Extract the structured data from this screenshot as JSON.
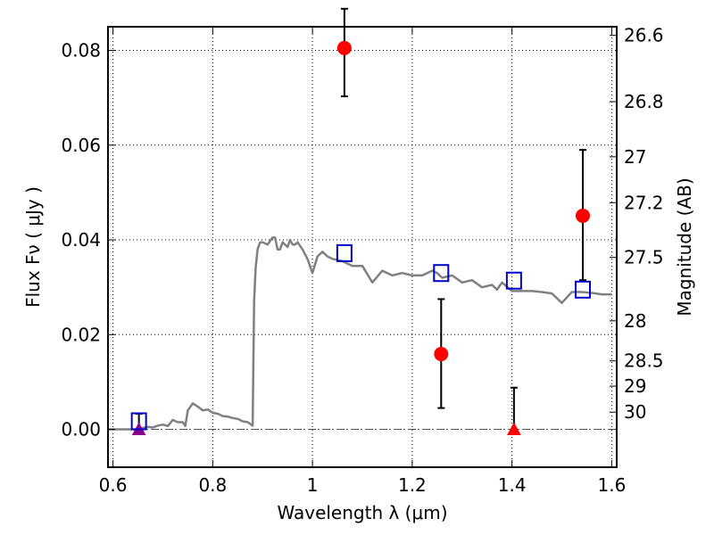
{
  "chart_data": {
    "type": "scatter",
    "xlabel": "Wavelength  λ (μm)",
    "ylabel": "Flux  Fν  ( μJy )",
    "y2label": "Magnitude (AB)",
    "xlim": [
      0.59,
      1.61
    ],
    "ylim": [
      -0.008,
      0.085
    ],
    "grid": true,
    "x_ticks": [
      0.6,
      0.8,
      1.0,
      1.2,
      1.4,
      1.6
    ],
    "x_tick_labels": [
      "0.6",
      "0.8",
      "1",
      "1.2",
      "1.4",
      "1.6"
    ],
    "y_ticks": [
      0.0,
      0.02,
      0.04,
      0.06,
      0.08
    ],
    "y_tick_labels": [
      "0.00",
      "0.02",
      "0.04",
      "0.06",
      "0.08"
    ],
    "mag_ticks": [
      26.6,
      26.8,
      27.0,
      27.2,
      27.5,
      28.0,
      28.5,
      29.0,
      30.0
    ],
    "mag_tick_labels": [
      "26.6",
      "26.8",
      "27",
      "27.2",
      "27.5",
      "28",
      "28.5",
      "29",
      "30"
    ],
    "zero_line": 0.0,
    "colors": {
      "model": "#808080",
      "observed": "#ff0000",
      "model_band": "#0000cc",
      "upper_limit": "#ff0000",
      "dropout": "#8b008b",
      "error_bar": "#000000"
    },
    "series": [
      {
        "kind": "model_spectrum",
        "x": [
          0.59,
          0.61,
          0.63,
          0.65,
          0.66,
          0.67,
          0.68,
          0.69,
          0.7,
          0.71,
          0.72,
          0.73,
          0.74,
          0.745,
          0.75,
          0.76,
          0.77,
          0.78,
          0.79,
          0.8,
          0.81,
          0.82,
          0.83,
          0.84,
          0.85,
          0.86,
          0.87,
          0.88,
          0.883,
          0.886,
          0.89,
          0.895,
          0.9,
          0.91,
          0.92,
          0.925,
          0.93,
          0.935,
          0.94,
          0.95,
          0.955,
          0.96,
          0.965,
          0.97,
          0.98,
          0.99,
          1.0,
          1.01,
          1.02,
          1.03,
          1.04,
          1.06,
          1.08,
          1.1,
          1.12,
          1.14,
          1.16,
          1.18,
          1.2,
          1.22,
          1.24,
          1.25,
          1.26,
          1.28,
          1.3,
          1.32,
          1.34,
          1.36,
          1.37,
          1.38,
          1.4,
          1.42,
          1.44,
          1.46,
          1.48,
          1.5,
          1.52,
          1.54,
          1.56,
          1.58,
          1.6
        ],
        "y": [
          0.0,
          0.0,
          0.0,
          0.0,
          0.0003,
          0.0005,
          0.0004,
          0.0008,
          0.001,
          0.0007,
          0.002,
          0.0015,
          0.0015,
          0.0007,
          0.004,
          0.0055,
          0.0048,
          0.004,
          0.0042,
          0.0035,
          0.0033,
          0.0028,
          0.0027,
          0.0024,
          0.0022,
          0.0017,
          0.0015,
          0.0008,
          0.027,
          0.034,
          0.038,
          0.0395,
          0.0395,
          0.039,
          0.0405,
          0.0405,
          0.038,
          0.038,
          0.0395,
          0.0385,
          0.04,
          0.039,
          0.039,
          0.0395,
          0.038,
          0.036,
          0.033,
          0.0365,
          0.0375,
          0.0365,
          0.036,
          0.0355,
          0.0345,
          0.0345,
          0.031,
          0.0335,
          0.0325,
          0.033,
          0.0325,
          0.0325,
          0.0335,
          0.033,
          0.032,
          0.0325,
          0.031,
          0.0315,
          0.03,
          0.0305,
          0.0295,
          0.031,
          0.0292,
          0.0292,
          0.0292,
          0.029,
          0.0287,
          0.0267,
          0.029,
          0.029,
          0.0288,
          0.0285,
          0.0285
        ]
      },
      {
        "kind": "observed_flux",
        "x": [
          1.064,
          1.258,
          1.542
        ],
        "y": [
          0.0805,
          0.0159,
          0.0451
        ],
        "y_err_low": [
          0.0703,
          0.0045,
          0.0315
        ],
        "y_err_high": [
          0.0888,
          0.0275,
          0.059
        ]
      },
      {
        "kind": "model_band_flux",
        "x": [
          0.652,
          1.064,
          1.258,
          1.404,
          1.542
        ],
        "y": [
          0.0017,
          0.0372,
          0.033,
          0.0314,
          0.0295
        ]
      },
      {
        "kind": "upper_limit",
        "x": [
          1.404
        ],
        "y": [
          0.0
        ],
        "y_err_high": [
          0.0088
        ]
      },
      {
        "kind": "dropout",
        "x": [
          0.652
        ],
        "y": [
          0.0
        ],
        "y_err_high": [
          0.0033
        ]
      }
    ]
  }
}
